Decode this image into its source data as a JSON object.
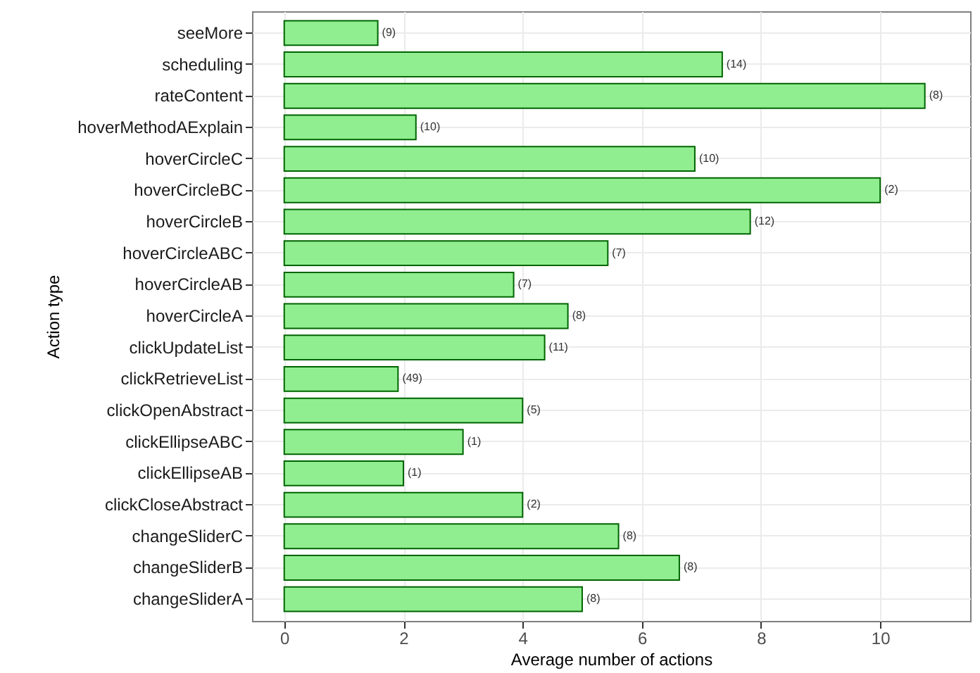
{
  "chart_data": {
    "type": "bar",
    "orientation": "horizontal",
    "xlabel": "Average number of actions",
    "ylabel": "Action type",
    "categories": [
      "seeMore",
      "scheduling",
      "rateContent",
      "hoverMethodAExplain",
      "hoverCircleC",
      "hoverCircleBC",
      "hoverCircleB",
      "hoverCircleABC",
      "hoverCircleAB",
      "hoverCircleA",
      "clickUpdateList",
      "clickRetrieveList",
      "clickOpenAbstract",
      "clickEllipseABC",
      "clickEllipseAB",
      "clickCloseAbstract",
      "changeSliderC",
      "changeSliderB",
      "changeSliderA"
    ],
    "values": [
      1.57,
      7.35,
      10.75,
      2.21,
      6.89,
      10,
      7.82,
      5.43,
      3.85,
      4.76,
      4.37,
      1.91,
      4,
      3,
      2,
      4,
      5.61,
      6.63,
      5
    ],
    "annotations": [
      {
        "text": "(9)",
        "x": 1.57,
        "y": "seeMore"
      },
      {
        "text": "(14)",
        "x": 7.35,
        "y": "scheduling"
      },
      {
        "text": "(8)",
        "x": 10.75,
        "y": "rateContent"
      },
      {
        "text": "(10)",
        "x": 2.21,
        "y": "hoverMethodAExplain"
      },
      {
        "text": "(10)",
        "x": 6.89,
        "y": "hoverCircleC"
      },
      {
        "text": "(2)",
        "x": 10,
        "y": "hoverCircleBC"
      },
      {
        "text": "(12)",
        "x": 7.82,
        "y": "hoverCircleB"
      },
      {
        "text": "(7)",
        "x": 5.43,
        "y": "hoverCircleABC"
      },
      {
        "text": "(7)",
        "x": 3.85,
        "y": "hoverCircleAB"
      },
      {
        "text": "(8)",
        "x": 4.76,
        "y": "hoverCircleA"
      },
      {
        "text": "(11)",
        "x": 4.37,
        "y": "clickUpdateList"
      },
      {
        "text": "(49)",
        "x": 1.91,
        "y": "clickRetrieveList"
      },
      {
        "text": "(5)",
        "x": 4,
        "y": "clickOpenAbstract"
      },
      {
        "text": "(1)",
        "x": 3,
        "y": "clickEllipseABC"
      },
      {
        "text": "(1)",
        "x": 2,
        "y": "clickEllipseAB"
      },
      {
        "text": "(2)",
        "x": 4,
        "y": "clickCloseAbstract"
      },
      {
        "text": "(8)",
        "x": 5.61,
        "y": "changeSliderC"
      },
      {
        "text": "(8)",
        "x": 6.63,
        "y": "changeSliderB"
      },
      {
        "text": "(8)",
        "x": 5,
        "y": "changeSliderA"
      }
    ],
    "color": "#90ee90",
    "xlim": [
      -0.54,
      11.51
    ],
    "xticks": [
      0,
      2,
      4,
      6,
      8,
      10
    ],
    "grid": true
  }
}
